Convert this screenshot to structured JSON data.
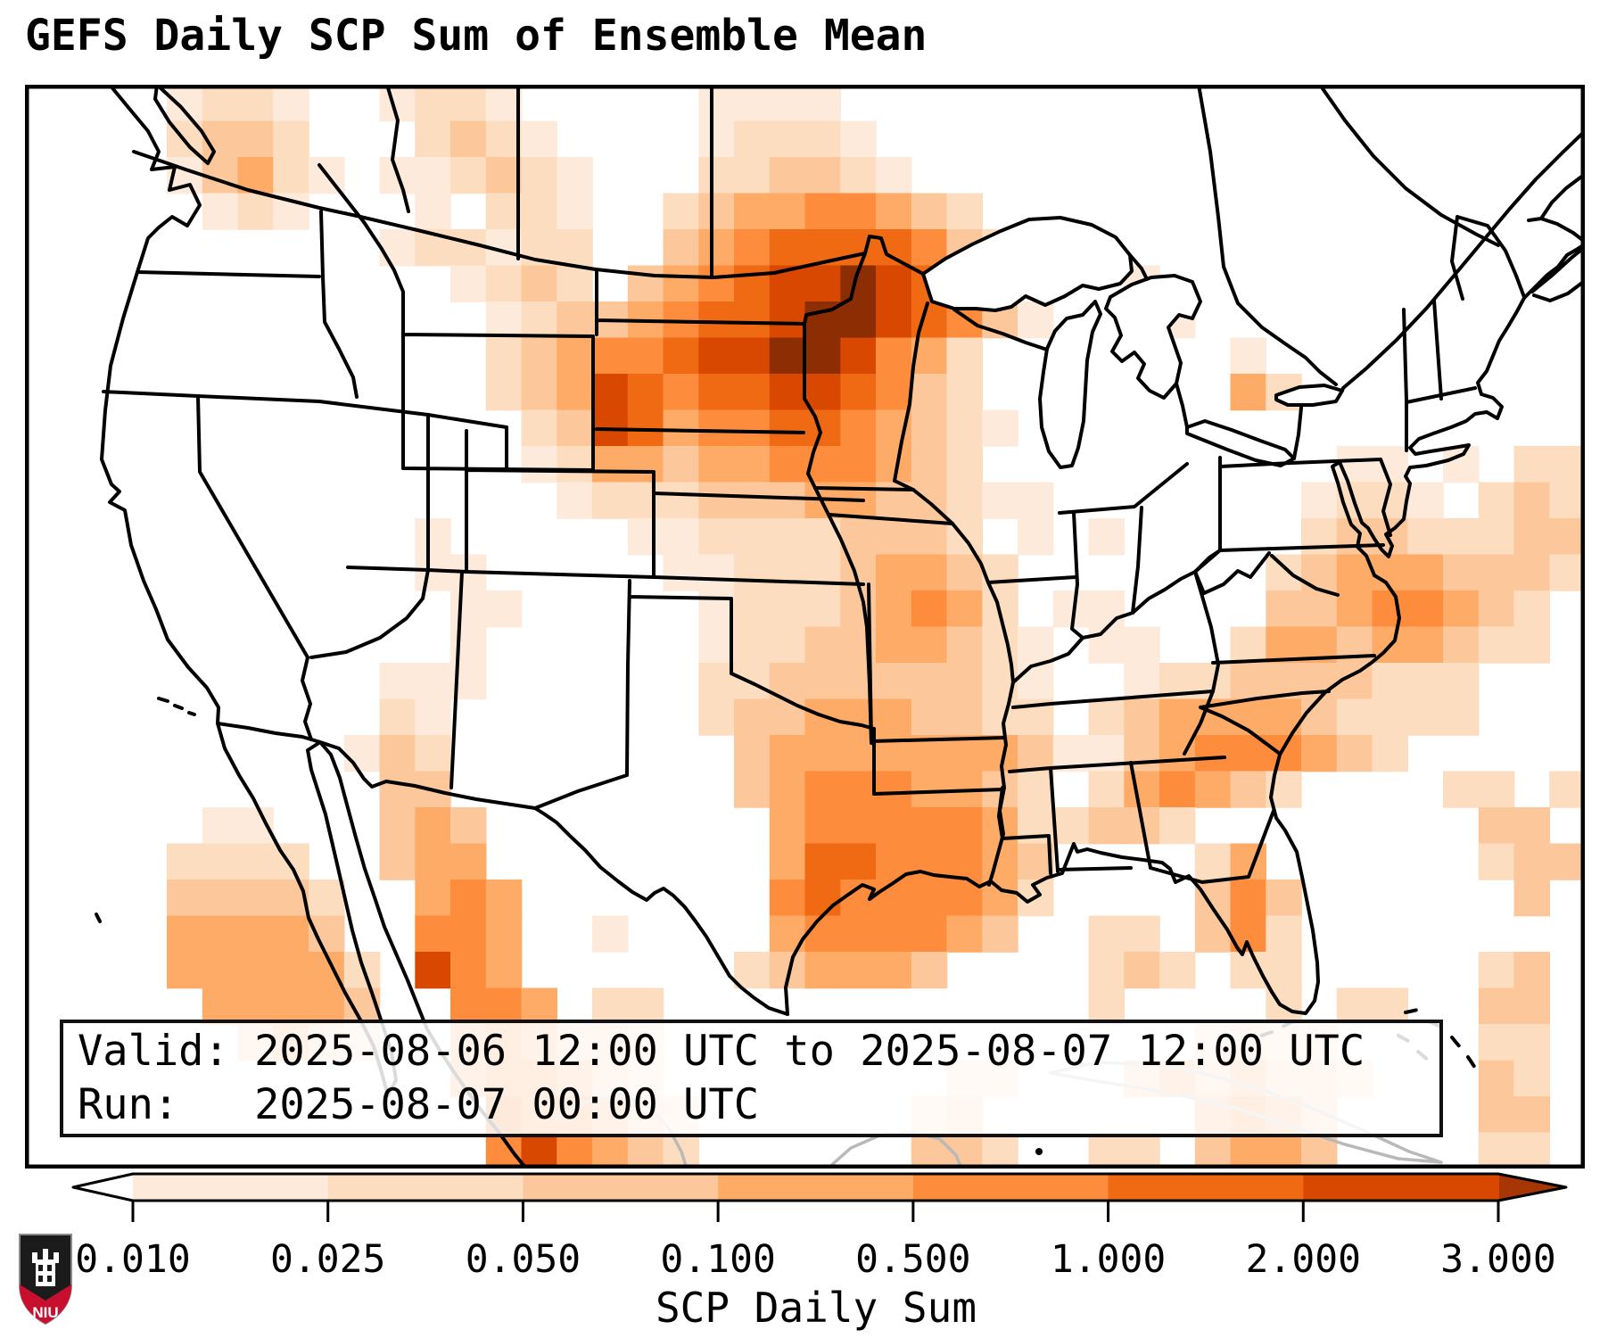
{
  "title": "GEFS Daily SCP Sum of Ensemble Mean",
  "info_box": {
    "line1": "Valid: 2025-08-06 12:00 UTC to 2025-08-07 12:00 UTC",
    "line2": "Run:   2025-08-07 00:00 UTC"
  },
  "colorbar": {
    "label": "SCP Daily Sum",
    "tick_labels": [
      "0.010",
      "0.025",
      "0.050",
      "0.100",
      "0.500",
      "1.000",
      "2.000",
      "3.000"
    ],
    "segment_colors": [
      "#fdeada",
      "#fdddc0",
      "#fdc79c",
      "#fdab67",
      "#fd8c3c",
      "#f06913",
      "#d94801"
    ],
    "under_color": "#ffffff",
    "over_color": "#a63603",
    "outline_color": "#000000"
  },
  "logo": {
    "text": "NIU",
    "shield_top": "#1b1b1b",
    "shield_bottom": "#c8102e"
  },
  "chart_data": {
    "type": "heatmap",
    "title": "GEFS Daily SCP Sum of Ensemble Mean",
    "valid": "2025-08-06 12:00 UTC to 2025-08-07 12:00 UTC",
    "run": "2025-08-07 00:00 UTC",
    "colorbar_label": "SCP Daily Sum",
    "value_bins": [
      0.01,
      0.025,
      0.05,
      0.1,
      0.5,
      1.0,
      2.0,
      3.0
    ],
    "bin_colors": [
      "#fdeada",
      "#fdddc0",
      "#fdc79c",
      "#fdab67",
      "#fd8c3c",
      "#f06913",
      "#d94801",
      "#8c2d04"
    ],
    "region": "CONUS with southern Canada, northern Mexico, Gulf of Mexico, western Atlantic",
    "max_region": "southern Minnesota / eastern South Dakota",
    "grid_cols": 44,
    "grid_rows": 30,
    "legend": "each char 0-8: 0=below 0.010 (white), 1-7 = bins, 8 = above 3.000",
    "grid": [
      "00001221001221000001111000000000000000000000",
      "00002332000232100001222100000000000000000000",
      "00001342101123210002233210000000000000000000",
      "00000121000102210023445543200000000000000000",
      "00000000001221220034566665320000000000000000",
      "00000000000012320345677876420001000000000000",
      "00000000000001233456678876531000100000000000",
      "00000000000002345567788754200000001000000000",
      "00000000000002347656677653200000004200000000",
      "00000000000000237645566543210000000000000000",
      "00000000000000124434455543200000000001101022",
      "00000000000000012223334433211000000012210232",
      "00000000000100000112222333201010000023322233",
      "00000000000110000011222344320000000234443332",
      "00000000000011000001222345420110000334554320",
      "00000000000010000001223344321011002443443220",
      "00000000001110000002233333321001223333222000",
      "00000000002100000002334443322023444432222000",
      "00000000013200000000344444443113455543200000",
      "00000000003300000000345554432024543200002202",
      "00000110003430000000045555542233200000000330",
      "00002222003440000000046655543000024000000233",
      "00003333200454000000056555542000035300000030",
      "00004444300554001000045555430022035200000000",
      "00004444420754000000234443000023202200000230",
      "00000444430055402200000000000020000202200330",
      "00000034320045433200000000000000023220000220",
      "00000000000045543200000000220003434332000320",
      "00000000000006554320000002300000045430000330",
      "00000000000005754320000003320022034430000220"
    ]
  }
}
